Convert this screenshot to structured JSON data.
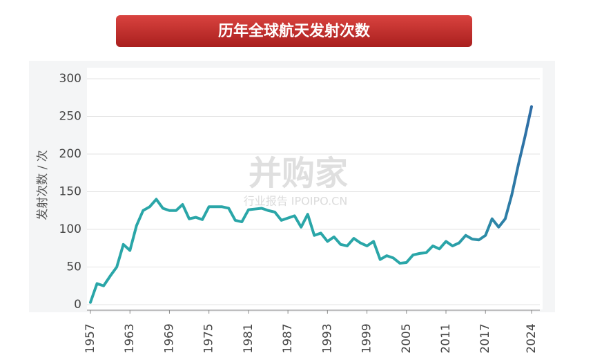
{
  "chart_data": {
    "type": "line",
    "title": "历年全球航天发射次数",
    "y_label": "发射次数 / 次",
    "watermark": "并购家",
    "watermark_caption": "行业报告 IPOIPO.CN",
    "x": [
      1957,
      1958,
      1959,
      1960,
      1961,
      1962,
      1963,
      1964,
      1965,
      1966,
      1967,
      1968,
      1969,
      1970,
      1971,
      1972,
      1973,
      1974,
      1975,
      1976,
      1977,
      1978,
      1979,
      1980,
      1981,
      1982,
      1983,
      1984,
      1985,
      1986,
      1987,
      1988,
      1989,
      1990,
      1991,
      1992,
      1993,
      1994,
      1995,
      1996,
      1997,
      1998,
      1999,
      2000,
      2001,
      2002,
      2003,
      2004,
      2005,
      2006,
      2007,
      2008,
      2009,
      2010,
      2011,
      2012,
      2013,
      2014,
      2015,
      2016,
      2017,
      2018,
      2019,
      2020,
      2021,
      2022,
      2023,
      2024
    ],
    "series": [
      {
        "name": "发射次数",
        "color": "#2aa6a8",
        "color_end": "#2f6ea6",
        "values": [
          3,
          28,
          25,
          38,
          50,
          80,
          72,
          105,
          125,
          130,
          140,
          128,
          125,
          125,
          133,
          114,
          116,
          113,
          130,
          130,
          130,
          128,
          112,
          110,
          126,
          127,
          128,
          125,
          123,
          112,
          115,
          118,
          103,
          120,
          92,
          95,
          84,
          90,
          80,
          78,
          88,
          82,
          78,
          84,
          60,
          65,
          62,
          55,
          56,
          66,
          68,
          69,
          78,
          74,
          84,
          78,
          82,
          92,
          87,
          86,
          92,
          114,
          103,
          114,
          146,
          186,
          223,
          263
        ]
      }
    ],
    "xlim": [
      1957,
      2024
    ],
    "xticks": [
      1957,
      1963,
      1969,
      1975,
      1981,
      1987,
      1993,
      1999,
      2005,
      2011,
      2017,
      2024
    ],
    "ylim": [
      0,
      300
    ],
    "yticks": [
      0,
      50,
      100,
      150,
      200,
      250,
      300
    ],
    "grid": true
  }
}
